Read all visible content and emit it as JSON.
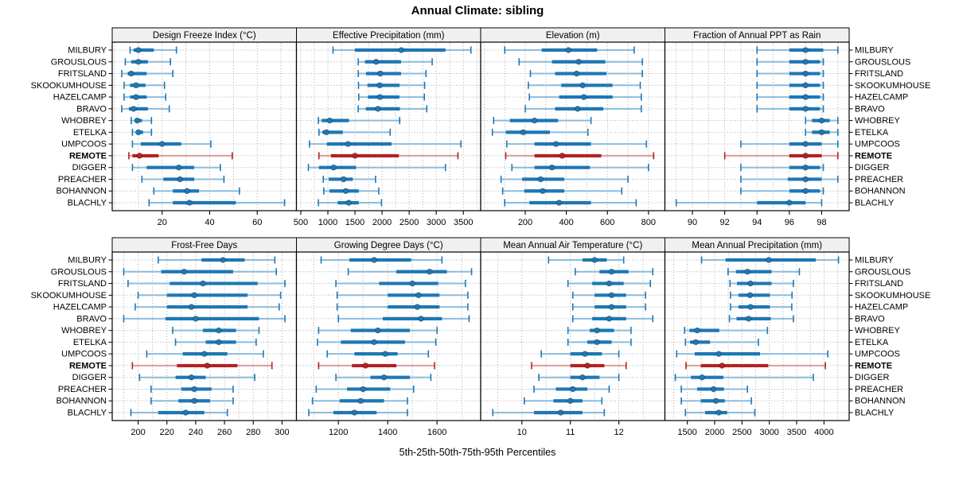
{
  "chart_data": {
    "type": "scatter",
    "variant": "trellis-percentile-dotplot",
    "title": "Annual Climate: sibling",
    "xlabel": "5th-25th-50th-75th-95th Percentiles",
    "percentiles": [
      5,
      25,
      50,
      75,
      95
    ],
    "grid": "dotted",
    "legend_position": "none",
    "stations": [
      "MILBURY",
      "GROUSLOUS",
      "FRITSLAND",
      "SKOOKUMHOUSE",
      "HAZELCAMP",
      "BRAVO",
      "WHOBREY",
      "ETELKA",
      "UMPCOOS",
      "REMOTE",
      "DIGGER",
      "PREACHER",
      "BOHANNON",
      "BLACHLY"
    ],
    "highlight_station": "REMOTE",
    "colors": {
      "series": "#1f77b4",
      "series_light": "#8cbcdc",
      "highlight": "#b22222",
      "highlight_light": "#dc9d96",
      "strip_bg": "#f0f0f0",
      "border": "#000000",
      "grid": "#aaaaaa"
    },
    "panels": [
      {
        "label": "Design Freeze Index (°C)",
        "grid_row": 0,
        "grid_col": 0,
        "xlim": [
          -1,
          76.5
        ],
        "ticks": [
          20,
          40,
          60
        ],
        "minor_step": 10,
        "values": [
          [
            6.5,
            8,
            10,
            16.5,
            26
          ],
          [
            4.5,
            7,
            10,
            14,
            23.5
          ],
          [
            3,
            5.5,
            7,
            13.5,
            24.5
          ],
          [
            4,
            6.5,
            9,
            13,
            21
          ],
          [
            4,
            6.5,
            9,
            13.5,
            21.5
          ],
          [
            3,
            6,
            8,
            14,
            23
          ],
          [
            7,
            8.5,
            9.5,
            11.5,
            15.5
          ],
          [
            7.5,
            9,
            10,
            12,
            15.5
          ],
          [
            7.5,
            11,
            20,
            28,
            40.5
          ],
          [
            6,
            7.5,
            10.5,
            18.5,
            49.5
          ],
          [
            7.5,
            13.5,
            27,
            33.5,
            44.5
          ],
          [
            11.5,
            20.5,
            27.5,
            33.5,
            46
          ],
          [
            16.5,
            24.5,
            30.5,
            35.5,
            52.5
          ],
          [
            14.5,
            24.5,
            31.5,
            51,
            71.5
          ]
        ]
      },
      {
        "label": "Effective Precipitation (mm)",
        "grid_row": 0,
        "grid_col": 1,
        "xlim": [
          420,
          3820
        ],
        "ticks": [
          500,
          1000,
          1500,
          2000,
          2500,
          3000,
          3500
        ],
        "minor_step": 250,
        "values": [
          [
            1095,
            1500,
            2355,
            3170,
            3640
          ],
          [
            1560,
            1685,
            1890,
            2350,
            2925
          ],
          [
            1560,
            1705,
            1965,
            2350,
            2810
          ],
          [
            1565,
            1730,
            1955,
            2325,
            2785
          ],
          [
            1570,
            1740,
            1960,
            2320,
            2780
          ],
          [
            1560,
            1700,
            1925,
            2330,
            2825
          ],
          [
            825,
            885,
            1035,
            1390,
            2325
          ],
          [
            835,
            900,
            970,
            1275,
            2150
          ],
          [
            660,
            980,
            1370,
            2175,
            3455
          ],
          [
            835,
            1055,
            1500,
            2310,
            3400
          ],
          [
            640,
            835,
            1105,
            1520,
            3170
          ],
          [
            915,
            1015,
            1290,
            1460,
            1880
          ],
          [
            925,
            1030,
            1330,
            1570,
            1940
          ],
          [
            825,
            1180,
            1385,
            1570,
            1990
          ]
        ]
      },
      {
        "label": "Elevation (m)",
        "grid_row": 0,
        "grid_col": 2,
        "xlim": [
          -17,
          880
        ],
        "ticks": [
          200,
          400,
          600,
          800
        ],
        "minor_step": 100,
        "values": [
          [
            100,
            280,
            410,
            550,
            730
          ],
          [
            170,
            330,
            460,
            590,
            770
          ],
          [
            225,
            345,
            450,
            595,
            770
          ],
          [
            215,
            375,
            480,
            625,
            760
          ],
          [
            220,
            365,
            485,
            625,
            765
          ],
          [
            200,
            345,
            455,
            580,
            765
          ],
          [
            46,
            125,
            245,
            360,
            520
          ],
          [
            40,
            105,
            190,
            320,
            505
          ],
          [
            110,
            245,
            350,
            520,
            790
          ],
          [
            105,
            245,
            380,
            570,
            825
          ],
          [
            135,
            245,
            330,
            515,
            800
          ],
          [
            82,
            185,
            275,
            390,
            700
          ],
          [
            90,
            195,
            285,
            390,
            670
          ],
          [
            100,
            220,
            365,
            520,
            740
          ]
        ]
      },
      {
        "label": "Fraction of Annual PPT as Rain",
        "grid_row": 0,
        "grid_col": 3,
        "xlim": [
          88.3,
          99.7
        ],
        "ticks": [
          90,
          92,
          94,
          96,
          98
        ],
        "minor_step": 1,
        "values": [
          [
            94,
            96,
            97,
            98.1,
            99
          ],
          [
            94,
            96,
            97,
            97.9,
            98.1
          ],
          [
            94,
            96,
            97,
            97.9,
            98.1
          ],
          [
            94,
            96,
            97,
            97.9,
            98.1
          ],
          [
            94,
            96,
            97,
            97.9,
            98.1
          ],
          [
            94,
            96,
            97,
            97.9,
            98.1
          ],
          [
            97,
            97.4,
            98,
            98.5,
            99
          ],
          [
            97,
            97.4,
            98,
            98.5,
            99
          ],
          [
            93,
            96,
            97,
            98,
            99
          ],
          [
            92,
            96,
            97,
            98,
            99
          ],
          [
            93,
            96,
            97,
            97.9,
            98.1
          ],
          [
            93,
            95.9,
            97,
            98,
            99
          ],
          [
            93,
            96,
            97,
            97.9,
            98.1
          ],
          [
            89,
            94,
            96,
            97,
            98
          ]
        ]
      },
      {
        "label": "Frost-Free Days",
        "grid_row": 1,
        "grid_col": 0,
        "xlim": [
          182,
          310
        ],
        "ticks": [
          200,
          220,
          240,
          260,
          280,
          300
        ],
        "minor_step": 10,
        "values": [
          [
            214,
            244,
            259,
            274,
            295
          ],
          [
            190,
            216,
            232,
            266,
            296
          ],
          [
            193,
            222,
            245,
            283,
            302
          ],
          [
            200,
            220,
            239,
            276,
            299
          ],
          [
            198,
            220,
            237,
            276,
            298
          ],
          [
            190,
            219,
            240,
            284,
            302
          ],
          [
            224,
            245,
            256,
            268,
            284
          ],
          [
            226,
            247,
            256,
            268,
            282
          ],
          [
            206,
            231,
            246,
            262,
            287
          ],
          [
            196,
            227,
            248,
            269,
            293
          ],
          [
            201,
            226,
            237,
            247,
            281
          ],
          [
            209,
            230,
            239,
            251,
            266
          ],
          [
            209,
            228,
            239,
            250,
            266
          ],
          [
            195,
            214,
            233,
            246,
            262
          ]
        ]
      },
      {
        "label": "Growing Degree Days (°C)",
        "grid_row": 1,
        "grid_col": 1,
        "xlim": [
          1030,
          1777
        ],
        "ticks": [
          1200,
          1400,
          1600
        ],
        "minor_step": 100,
        "values": [
          [
            1130,
            1245,
            1345,
            1495,
            1620
          ],
          [
            1240,
            1435,
            1570,
            1640,
            1740
          ],
          [
            1190,
            1365,
            1500,
            1605,
            1715
          ],
          [
            1195,
            1400,
            1525,
            1610,
            1725
          ],
          [
            1195,
            1400,
            1520,
            1610,
            1725
          ],
          [
            1200,
            1380,
            1535,
            1620,
            1730
          ],
          [
            1120,
            1250,
            1360,
            1490,
            1600
          ],
          [
            1115,
            1210,
            1345,
            1470,
            1595
          ],
          [
            1155,
            1265,
            1390,
            1440,
            1565
          ],
          [
            1120,
            1255,
            1310,
            1435,
            1590
          ],
          [
            1190,
            1330,
            1385,
            1490,
            1575
          ],
          [
            1110,
            1235,
            1300,
            1410,
            1505
          ],
          [
            1095,
            1205,
            1290,
            1385,
            1480
          ],
          [
            1080,
            1180,
            1265,
            1355,
            1480
          ]
        ]
      },
      {
        "label": "Mean Annual Air Temperature (°C)",
        "grid_row": 1,
        "grid_col": 2,
        "xlim": [
          9.15,
          12.95
        ],
        "ticks": [
          10,
          11,
          12
        ],
        "minor_step": 0.5,
        "values": [
          [
            10.55,
            11.25,
            11.5,
            11.75,
            12.1
          ],
          [
            11.1,
            11.6,
            11.85,
            12.2,
            12.7
          ],
          [
            10.95,
            11.45,
            11.8,
            12.1,
            12.65
          ],
          [
            11.05,
            11.5,
            11.85,
            12.15,
            12.55
          ],
          [
            11.05,
            11.5,
            11.85,
            12.15,
            12.55
          ],
          [
            11.05,
            11.45,
            11.8,
            12.15,
            12.7
          ],
          [
            10.95,
            11.4,
            11.55,
            11.9,
            12.25
          ],
          [
            10.95,
            11.35,
            11.55,
            11.85,
            12.25
          ],
          [
            10.4,
            11,
            11.3,
            11.65,
            12
          ],
          [
            10.2,
            11,
            11.35,
            11.7,
            12.15
          ],
          [
            10.35,
            11,
            11.25,
            11.6,
            12
          ],
          [
            10.25,
            10.7,
            11.05,
            11.35,
            11.8
          ],
          [
            10.05,
            10.65,
            11,
            11.25,
            11.65
          ],
          [
            9.4,
            10.25,
            10.8,
            11.25,
            11.7
          ]
        ]
      },
      {
        "label": "Mean Annual Precipitation (mm)",
        "grid_row": 1,
        "grid_col": 3,
        "xlim": [
          1090,
          4460
        ],
        "ticks": [
          1500,
          2000,
          2500,
          3000,
          3500,
          4000
        ],
        "minor_step": 250,
        "values": [
          [
            1760,
            2200,
            2990,
            3850,
            4265
          ],
          [
            2245,
            2390,
            2600,
            3040,
            3550
          ],
          [
            2280,
            2410,
            2655,
            3040,
            3440
          ],
          [
            2290,
            2435,
            2645,
            3010,
            3415
          ],
          [
            2290,
            2435,
            2655,
            3010,
            3410
          ],
          [
            2270,
            2400,
            2620,
            3025,
            3440
          ],
          [
            1450,
            1540,
            1680,
            2085,
            2965
          ],
          [
            1465,
            1550,
            1655,
            1915,
            2800
          ],
          [
            1305,
            1635,
            2075,
            2830,
            4070
          ],
          [
            1475,
            1745,
            2135,
            2980,
            4025
          ],
          [
            1280,
            1565,
            1770,
            2160,
            3805
          ],
          [
            1390,
            1680,
            1980,
            2170,
            2600
          ],
          [
            1390,
            1745,
            2025,
            2185,
            2670
          ],
          [
            1465,
            1825,
            2075,
            2230,
            2735
          ]
        ]
      }
    ]
  }
}
